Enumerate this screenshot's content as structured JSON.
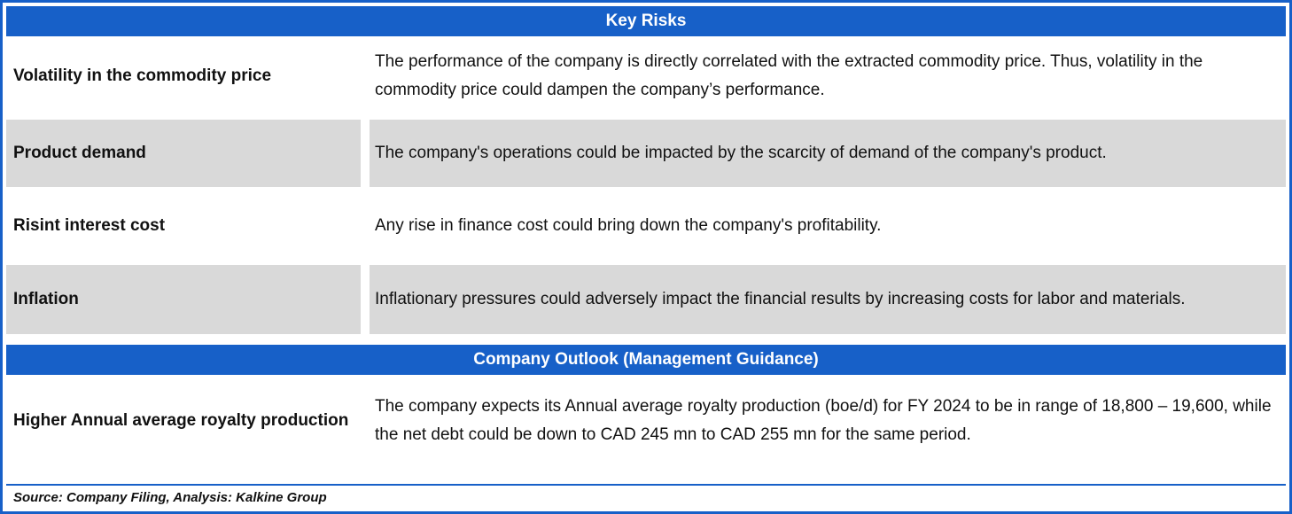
{
  "theme": {
    "accent": "#1760c8",
    "row-alt": "#d9d9d9",
    "text": "#111111"
  },
  "key_risks": {
    "title": "Key Risks",
    "rows": [
      {
        "label": "Volatility in the commodity price",
        "description": "The performance of the company is directly correlated with the extracted commodity price. Thus, volatility in the commodity price could dampen the company’s performance."
      },
      {
        "label": "Product demand",
        "description": "The company's operations could be impacted by the scarcity of demand of the company's product."
      },
      {
        "label": "Risint interest cost",
        "description": "Any rise in finance cost could bring down the company's profitability."
      },
      {
        "label": "Inflation",
        "description": "Inflationary pressures could adversely impact the financial results by increasing costs for labor and materials."
      }
    ]
  },
  "company_outlook": {
    "title": "Company Outlook (Management Guidance)",
    "rows": [
      {
        "label": "Higher Annual average royalty production",
        "description": "The company expects its Annual average royalty production (boe/d) for FY 2024 to be in range of 18,800 – 19,600, while the net debt could be down to CAD 245 mn to CAD 255 mn for the same period."
      }
    ]
  },
  "footer": {
    "source": "Source: Company Filing, Analysis: Kalkine Group"
  }
}
